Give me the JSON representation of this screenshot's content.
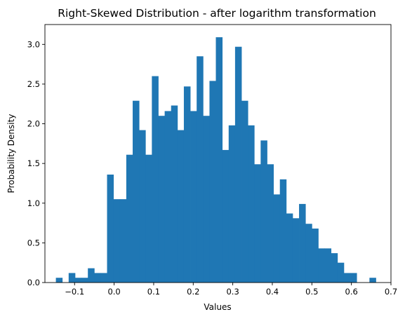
{
  "chart_data": {
    "type": "bar",
    "title": "Right-Skewed Distribution - after logarithm transformation",
    "xlabel": "Values",
    "ylabel": "Probability Density",
    "xlim": [
      -0.175,
      0.7
    ],
    "ylim": [
      0,
      3.25
    ],
    "grid": false,
    "legend": "none",
    "x_ticks": [
      {
        "value": -0.1,
        "label": "−0.1"
      },
      {
        "value": 0.0,
        "label": "0.0"
      },
      {
        "value": 0.1,
        "label": "0.1"
      },
      {
        "value": 0.2,
        "label": "0.2"
      },
      {
        "value": 0.3,
        "label": "0.3"
      },
      {
        "value": 0.4,
        "label": "0.4"
      },
      {
        "value": 0.5,
        "label": "0.5"
      },
      {
        "value": 0.6,
        "label": "0.6"
      },
      {
        "value": 0.7,
        "label": "0.7"
      }
    ],
    "y_ticks": [
      {
        "value": 0.0,
        "label": "0.0"
      },
      {
        "value": 0.5,
        "label": "0.5"
      },
      {
        "value": 1.0,
        "label": "1.0"
      },
      {
        "value": 1.5,
        "label": "1.5"
      },
      {
        "value": 2.0,
        "label": "2.0"
      },
      {
        "value": 2.5,
        "label": "2.5"
      },
      {
        "value": 3.0,
        "label": "3.0"
      }
    ],
    "bar_color": "#1f77b4",
    "bins": [
      {
        "x0": -0.1473,
        "x1": -0.1311,
        "density": 0.06
      },
      {
        "x0": -0.1311,
        "x1": -0.115,
        "density": 0.0
      },
      {
        "x0": -0.115,
        "x1": -0.0988,
        "density": 0.12
      },
      {
        "x0": -0.0988,
        "x1": -0.0826,
        "density": 0.06
      },
      {
        "x0": -0.0826,
        "x1": -0.0664,
        "density": 0.06
      },
      {
        "x0": -0.0664,
        "x1": -0.0502,
        "density": 0.18
      },
      {
        "x0": -0.0502,
        "x1": -0.034,
        "density": 0.12
      },
      {
        "x0": -0.034,
        "x1": -0.0179,
        "density": 0.12
      },
      {
        "x0": -0.0179,
        "x1": -0.0017,
        "density": 1.36
      },
      {
        "x0": -0.0017,
        "x1": 0.0145,
        "density": 1.05
      },
      {
        "x0": 0.0145,
        "x1": 0.0307,
        "density": 1.05
      },
      {
        "x0": 0.0307,
        "x1": 0.0469,
        "density": 1.61
      },
      {
        "x0": 0.0469,
        "x1": 0.0631,
        "density": 2.29
      },
      {
        "x0": 0.0631,
        "x1": 0.0792,
        "density": 1.92
      },
      {
        "x0": 0.0792,
        "x1": 0.0954,
        "density": 1.61
      },
      {
        "x0": 0.0954,
        "x1": 0.1116,
        "density": 2.6
      },
      {
        "x0": 0.1116,
        "x1": 0.1278,
        "density": 2.1
      },
      {
        "x0": 0.1278,
        "x1": 0.144,
        "density": 2.16
      },
      {
        "x0": 0.144,
        "x1": 0.1601,
        "density": 2.23
      },
      {
        "x0": 0.1601,
        "x1": 0.1763,
        "density": 1.92
      },
      {
        "x0": 0.1763,
        "x1": 0.1925,
        "density": 2.47
      },
      {
        "x0": 0.1925,
        "x1": 0.2087,
        "density": 2.16
      },
      {
        "x0": 0.2087,
        "x1": 0.2249,
        "density": 2.85
      },
      {
        "x0": 0.2249,
        "x1": 0.2411,
        "density": 2.1
      },
      {
        "x0": 0.2411,
        "x1": 0.2572,
        "density": 2.54
      },
      {
        "x0": 0.2572,
        "x1": 0.2734,
        "density": 3.09
      },
      {
        "x0": 0.2734,
        "x1": 0.2896,
        "density": 1.67
      },
      {
        "x0": 0.2896,
        "x1": 0.3058,
        "density": 1.98
      },
      {
        "x0": 0.3058,
        "x1": 0.322,
        "density": 2.97
      },
      {
        "x0": 0.322,
        "x1": 0.3382,
        "density": 2.29
      },
      {
        "x0": 0.3382,
        "x1": 0.3543,
        "density": 1.98
      },
      {
        "x0": 0.3543,
        "x1": 0.3705,
        "density": 1.49
      },
      {
        "x0": 0.3705,
        "x1": 0.3867,
        "density": 1.79
      },
      {
        "x0": 0.3867,
        "x1": 0.4029,
        "density": 1.49
      },
      {
        "x0": 0.4029,
        "x1": 0.4191,
        "density": 1.11
      },
      {
        "x0": 0.4191,
        "x1": 0.4352,
        "density": 1.3
      },
      {
        "x0": 0.4352,
        "x1": 0.4514,
        "density": 0.87
      },
      {
        "x0": 0.4514,
        "x1": 0.4676,
        "density": 0.81
      },
      {
        "x0": 0.4676,
        "x1": 0.4838,
        "density": 0.99
      },
      {
        "x0": 0.4838,
        "x1": 0.5,
        "density": 0.74
      },
      {
        "x0": 0.5,
        "x1": 0.5162,
        "density": 0.68
      },
      {
        "x0": 0.5162,
        "x1": 0.5323,
        "density": 0.43
      },
      {
        "x0": 0.5323,
        "x1": 0.5485,
        "density": 0.43
      },
      {
        "x0": 0.5485,
        "x1": 0.5647,
        "density": 0.37
      },
      {
        "x0": 0.5647,
        "x1": 0.5809,
        "density": 0.25
      },
      {
        "x0": 0.5809,
        "x1": 0.5971,
        "density": 0.12
      },
      {
        "x0": 0.5971,
        "x1": 0.6133,
        "density": 0.12
      },
      {
        "x0": 0.6133,
        "x1": 0.6294,
        "density": 0.0
      },
      {
        "x0": 0.6294,
        "x1": 0.6456,
        "density": 0.0
      },
      {
        "x0": 0.6456,
        "x1": 0.6618,
        "density": 0.06
      }
    ]
  }
}
